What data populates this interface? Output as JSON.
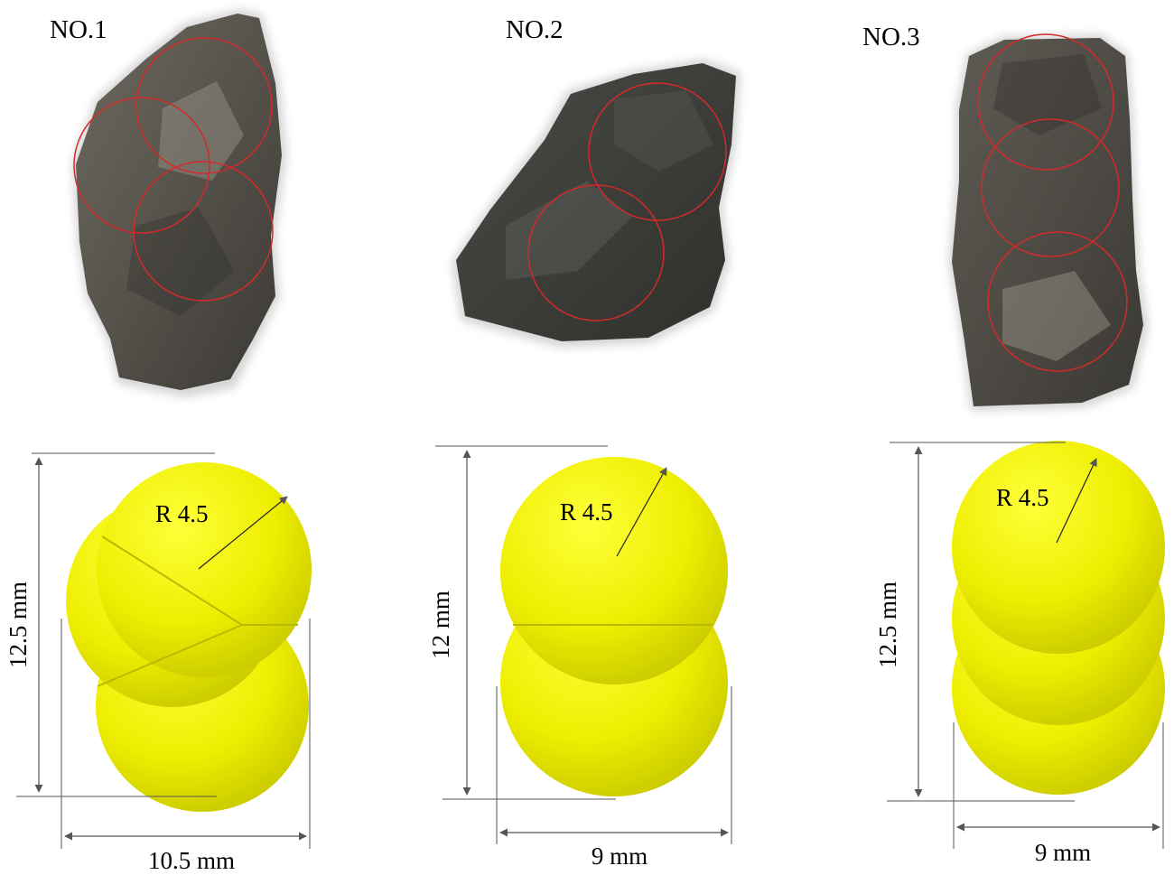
{
  "colors": {
    "sphere": "#f3f300",
    "outline_circle": "#d42a2a",
    "dimension": "#555555",
    "rock_dark": "#3d3d38",
    "rock_light": "#85827a"
  },
  "specimens": [
    {
      "label": "NO.1",
      "radius": "R 4.5",
      "height": "12.5 mm",
      "width": "10.5 mm",
      "sphere_count": 3
    },
    {
      "label": "NO.2",
      "radius": "R 4.5",
      "height": "12 mm",
      "width": "9 mm",
      "sphere_count": 2
    },
    {
      "label": "NO.3",
      "radius": "R 4.5",
      "height": "12.5 mm",
      "width": "9 mm",
      "sphere_count": 3
    }
  ]
}
